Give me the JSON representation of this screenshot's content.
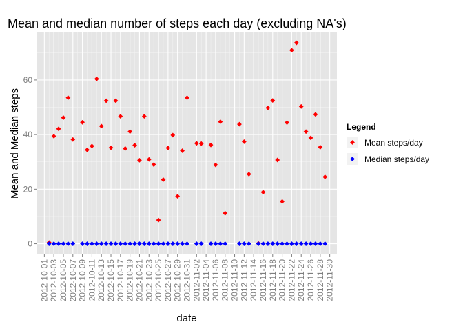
{
  "chart_data": {
    "type": "scatter",
    "title": "Mean and median number of steps each day (excluding NA's)",
    "xlabel": "date",
    "ylabel": "Mean and Median steps",
    "ylim": [
      -3.9,
      77.4
    ],
    "yticks": [
      0,
      20,
      40,
      60
    ],
    "grid": true,
    "x_tick_labels": [
      "2012-10-01",
      "2012-10-03",
      "2012-10-05",
      "2012-10-07",
      "2012-10-09",
      "2012-10-11",
      "2012-10-13",
      "2012-10-15",
      "2012-10-17",
      "2012-10-19",
      "2012-10-21",
      "2012-10-23",
      "2012-10-25",
      "2012-10-27",
      "2012-10-29",
      "2012-10-31",
      "2012-11-02",
      "2012-11-04",
      "2012-11-06",
      "2012-11-08",
      "2012-11-10",
      "2012-11-12",
      "2012-11-14",
      "2012-11-16",
      "2012-11-18",
      "2012-11-20",
      "2012-11-22",
      "2012-11-24",
      "2012-11-26",
      "2012-11-28",
      "2012-11-30"
    ],
    "x_day_range": [
      1,
      61
    ],
    "legend": {
      "title": "Legend",
      "position": "right",
      "entries": [
        {
          "label": "Mean steps/day",
          "color": "#ff0000"
        },
        {
          "label": "Median steps/day",
          "color": "#0000ff"
        }
      ]
    },
    "series": [
      {
        "name": "Mean steps/day",
        "color": "#ff0000",
        "points": [
          {
            "day": 2,
            "value": 0.44
          },
          {
            "day": 3,
            "value": 39.4
          },
          {
            "day": 4,
            "value": 42.1
          },
          {
            "day": 5,
            "value": 46.2
          },
          {
            "day": 6,
            "value": 53.5
          },
          {
            "day": 7,
            "value": 38.2
          },
          {
            "day": 9,
            "value": 44.5
          },
          {
            "day": 10,
            "value": 34.4
          },
          {
            "day": 11,
            "value": 35.8
          },
          {
            "day": 12,
            "value": 60.4
          },
          {
            "day": 13,
            "value": 43.1
          },
          {
            "day": 14,
            "value": 52.4
          },
          {
            "day": 15,
            "value": 35.2
          },
          {
            "day": 16,
            "value": 52.4
          },
          {
            "day": 17,
            "value": 46.7
          },
          {
            "day": 18,
            "value": 34.9
          },
          {
            "day": 19,
            "value": 41.1
          },
          {
            "day": 20,
            "value": 36.1
          },
          {
            "day": 21,
            "value": 30.6
          },
          {
            "day": 22,
            "value": 46.7
          },
          {
            "day": 23,
            "value": 30.9
          },
          {
            "day": 24,
            "value": 29.0
          },
          {
            "day": 25,
            "value": 8.7
          },
          {
            "day": 26,
            "value": 23.5
          },
          {
            "day": 27,
            "value": 35.1
          },
          {
            "day": 28,
            "value": 39.8
          },
          {
            "day": 29,
            "value": 17.4
          },
          {
            "day": 30,
            "value": 34.1
          },
          {
            "day": 31,
            "value": 53.5
          },
          {
            "day": 33,
            "value": 36.8
          },
          {
            "day": 34,
            "value": 36.7
          },
          {
            "day": 36,
            "value": 36.2
          },
          {
            "day": 37,
            "value": 28.9
          },
          {
            "day": 38,
            "value": 44.7
          },
          {
            "day": 39,
            "value": 11.2
          },
          {
            "day": 42,
            "value": 43.8
          },
          {
            "day": 43,
            "value": 37.4
          },
          {
            "day": 44,
            "value": 25.5
          },
          {
            "day": 46,
            "value": 0.14
          },
          {
            "day": 47,
            "value": 18.9
          },
          {
            "day": 48,
            "value": 49.8
          },
          {
            "day": 49,
            "value": 52.5
          },
          {
            "day": 50,
            "value": 30.7
          },
          {
            "day": 51,
            "value": 15.5
          },
          {
            "day": 52,
            "value": 44.4
          },
          {
            "day": 53,
            "value": 70.9
          },
          {
            "day": 54,
            "value": 73.6
          },
          {
            "day": 55,
            "value": 50.3
          },
          {
            "day": 56,
            "value": 41.1
          },
          {
            "day": 57,
            "value": 38.8
          },
          {
            "day": 58,
            "value": 47.4
          },
          {
            "day": 59,
            "value": 35.4
          },
          {
            "day": 60,
            "value": 24.5
          }
        ]
      },
      {
        "name": "Median steps/day",
        "color": "#0000ff",
        "points": [
          {
            "day": 2,
            "value": 0
          },
          {
            "day": 3,
            "value": 0
          },
          {
            "day": 4,
            "value": 0
          },
          {
            "day": 5,
            "value": 0
          },
          {
            "day": 6,
            "value": 0
          },
          {
            "day": 7,
            "value": 0
          },
          {
            "day": 9,
            "value": 0
          },
          {
            "day": 10,
            "value": 0
          },
          {
            "day": 11,
            "value": 0
          },
          {
            "day": 12,
            "value": 0
          },
          {
            "day": 13,
            "value": 0
          },
          {
            "day": 14,
            "value": 0
          },
          {
            "day": 15,
            "value": 0
          },
          {
            "day": 16,
            "value": 0
          },
          {
            "day": 17,
            "value": 0
          },
          {
            "day": 18,
            "value": 0
          },
          {
            "day": 19,
            "value": 0
          },
          {
            "day": 20,
            "value": 0
          },
          {
            "day": 21,
            "value": 0
          },
          {
            "day": 22,
            "value": 0
          },
          {
            "day": 23,
            "value": 0
          },
          {
            "day": 24,
            "value": 0
          },
          {
            "day": 25,
            "value": 0
          },
          {
            "day": 26,
            "value": 0
          },
          {
            "day": 27,
            "value": 0
          },
          {
            "day": 28,
            "value": 0
          },
          {
            "day": 29,
            "value": 0
          },
          {
            "day": 30,
            "value": 0
          },
          {
            "day": 31,
            "value": 0
          },
          {
            "day": 33,
            "value": 0
          },
          {
            "day": 34,
            "value": 0
          },
          {
            "day": 36,
            "value": 0
          },
          {
            "day": 37,
            "value": 0
          },
          {
            "day": 38,
            "value": 0
          },
          {
            "day": 39,
            "value": 0
          },
          {
            "day": 42,
            "value": 0
          },
          {
            "day": 43,
            "value": 0
          },
          {
            "day": 44,
            "value": 0
          },
          {
            "day": 46,
            "value": 0
          },
          {
            "day": 47,
            "value": 0
          },
          {
            "day": 48,
            "value": 0
          },
          {
            "day": 49,
            "value": 0
          },
          {
            "day": 50,
            "value": 0
          },
          {
            "day": 51,
            "value": 0
          },
          {
            "day": 52,
            "value": 0
          },
          {
            "day": 53,
            "value": 0
          },
          {
            "day": 54,
            "value": 0
          },
          {
            "day": 55,
            "value": 0
          },
          {
            "day": 56,
            "value": 0
          },
          {
            "day": 57,
            "value": 0
          },
          {
            "day": 58,
            "value": 0
          },
          {
            "day": 59,
            "value": 0
          },
          {
            "day": 60,
            "value": 0
          }
        ]
      }
    ]
  },
  "colors": {
    "panel_background": "#e5e5e5",
    "grid_major": "#ffffff",
    "grid_minor": "#f2f2f2",
    "tick_label": "#7f7f7f",
    "legend_key_background": "#f2f2f2"
  }
}
